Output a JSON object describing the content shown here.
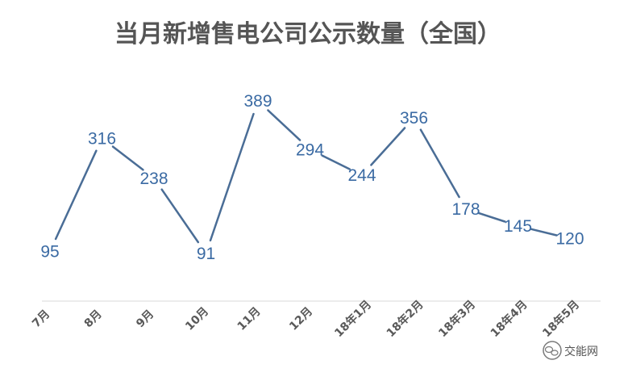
{
  "chart_data": {
    "type": "line",
    "title": "当月新增售电公司公示数量（全国）",
    "categories": [
      "7月",
      "8月",
      "9月",
      "10月",
      "11月",
      "12月",
      "18年1月",
      "18年2月",
      "18年3月",
      "18年4月",
      "18年5月"
    ],
    "series": [
      {
        "values": [
          95,
          316,
          238,
          91,
          389,
          294,
          244,
          356,
          178,
          145,
          120
        ]
      }
    ],
    "xlabel": "",
    "ylabel": "",
    "grid": false,
    "line_color": "#4a6d96",
    "label_color": "#3a6aa3"
  },
  "watermark": {
    "text": "交能网",
    "icon": "wechat-icon"
  }
}
